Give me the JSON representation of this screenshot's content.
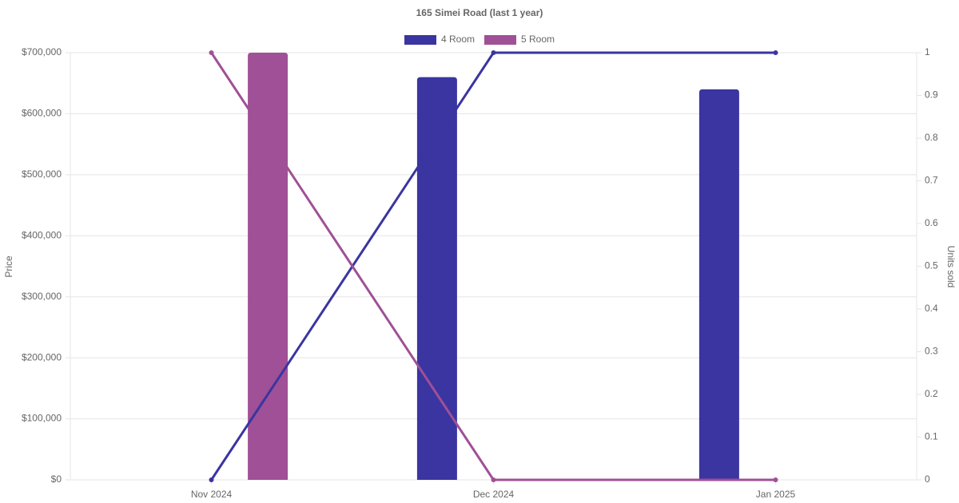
{
  "chart_data": {
    "type": "bar",
    "title": "165 Simei Road (last 1 year)",
    "categories": [
      "Nov 2024",
      "Dec 2024",
      "Jan 2025"
    ],
    "series": [
      {
        "name": "4 Room",
        "color": "#3a35a0",
        "values": [
          null,
          660000,
          640000
        ],
        "units_sold": [
          0,
          1,
          1
        ]
      },
      {
        "name": "5 Room",
        "color": "#a05096",
        "values": [
          700000,
          null,
          null
        ],
        "units_sold": [
          1,
          0,
          0
        ]
      }
    ],
    "y_label": "Price",
    "y2_label": "Units sold",
    "ylim": [
      0,
      700000
    ],
    "yticks": [
      {
        "value": 0,
        "label": "$0"
      },
      {
        "value": 100000,
        "label": "$100,000"
      },
      {
        "value": 200000,
        "label": "$200,000"
      },
      {
        "value": 300000,
        "label": "$300,000"
      },
      {
        "value": 400000,
        "label": "$400,000"
      },
      {
        "value": 500000,
        "label": "$500,000"
      },
      {
        "value": 600000,
        "label": "$600,000"
      },
      {
        "value": 700000,
        "label": "$700,000"
      }
    ],
    "y2lim": [
      0,
      1
    ],
    "y2ticks": [
      0,
      0.1,
      0.2,
      0.3,
      0.4,
      0.5,
      0.6,
      0.7,
      0.8,
      0.9,
      1
    ],
    "grid": true
  }
}
